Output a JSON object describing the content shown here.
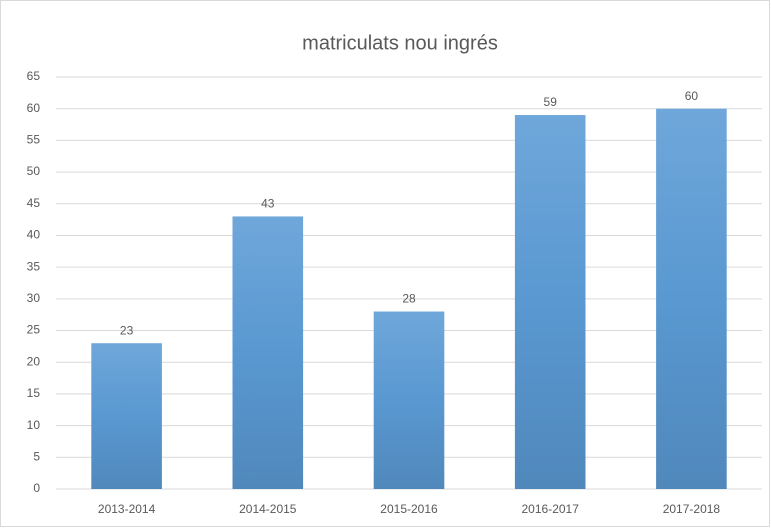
{
  "chart_data": {
    "type": "bar",
    "title": "matriculats nou ingrés",
    "categories": [
      "2013-2014",
      "2014-2015",
      "2015-2016",
      "2016-2017",
      "2017-2018"
    ],
    "values": [
      23,
      43,
      28,
      59,
      60
    ],
    "color": "#5b9bd5",
    "ylim": [
      0,
      65
    ],
    "yticks": [
      0,
      5,
      10,
      15,
      20,
      25,
      30,
      35,
      40,
      45,
      50,
      55,
      60,
      65
    ],
    "grid": true,
    "data_labels": true
  }
}
